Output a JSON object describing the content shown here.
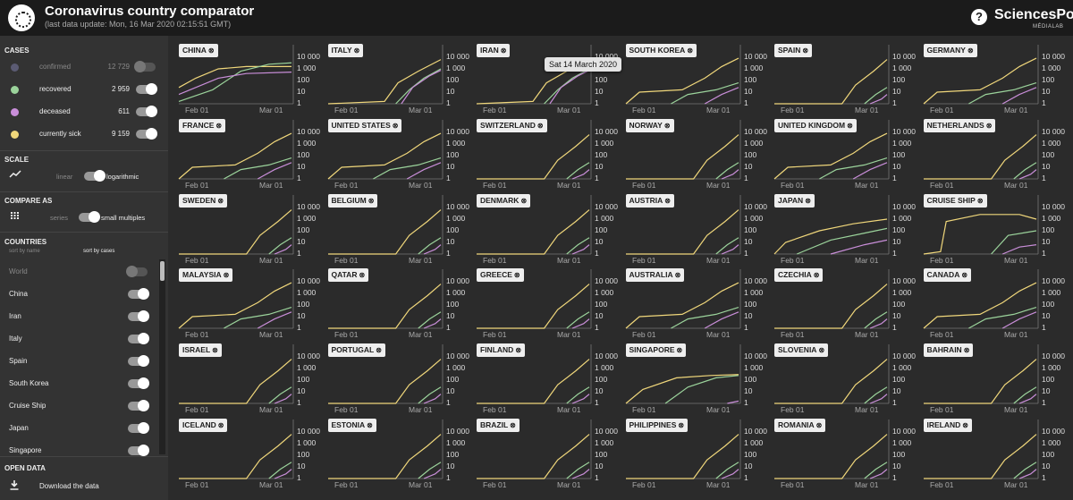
{
  "header": {
    "title": "Coronavirus country comparator",
    "last_update": "(last data update: Mon, 16 Mar 2020 02:15:51 GMT)",
    "help": "?",
    "brand": "SciencesPo",
    "brand_sub": "MÉDIALAB"
  },
  "colors": {
    "confirmed": "#5b5b73",
    "recovered": "#9bd39b",
    "deceased": "#c98ed9",
    "sick": "#f0d77b"
  },
  "sidebar": {
    "cases_title": "CASES",
    "cases": [
      {
        "key": "confirmed",
        "label": "confirmed",
        "value": "12 729",
        "on": false
      },
      {
        "key": "recovered",
        "label": "recovered",
        "value": "2 959",
        "on": true
      },
      {
        "key": "deceased",
        "label": "deceased",
        "value": "611",
        "on": true
      },
      {
        "key": "sick",
        "label": "currently sick",
        "value": "9 159",
        "on": true
      }
    ],
    "scale_title": "SCALE",
    "scale_off": "linear",
    "scale_on": "logarithmic",
    "scale_icon": "trend-line-icon",
    "compare_title": "COMPARE AS",
    "compare_off": "series",
    "compare_on": "small multiples",
    "compare_icon": "grid-icon",
    "countries_title": "COUNTRIES",
    "sort_name": "sort by name",
    "sort_cases": "sort by cases",
    "countries": [
      {
        "label": "World",
        "on": false
      },
      {
        "label": "China",
        "on": true
      },
      {
        "label": "Iran",
        "on": true
      },
      {
        "label": "Italy",
        "on": true
      },
      {
        "label": "Spain",
        "on": true
      },
      {
        "label": "South Korea",
        "on": true
      },
      {
        "label": "Cruise Ship",
        "on": true
      },
      {
        "label": "Japan",
        "on": true
      },
      {
        "label": "Singapore",
        "on": true
      }
    ],
    "open_data_title": "OPEN DATA",
    "download_label": "Download the data",
    "download_icon": "download-icon"
  },
  "tooltip": "Sat 14 March 2020",
  "panels": [
    {
      "name": "CHINA",
      "profile": "china"
    },
    {
      "name": "ITALY",
      "profile": "steep"
    },
    {
      "name": "IRAN",
      "profile": "steep"
    },
    {
      "name": "SOUTH KOREA",
      "profile": "early"
    },
    {
      "name": "SPAIN",
      "profile": "late"
    },
    {
      "name": "GERMANY",
      "profile": "early"
    },
    {
      "name": "FRANCE",
      "profile": "early"
    },
    {
      "name": "UNITED STATES",
      "profile": "early"
    },
    {
      "name": "SWITZERLAND",
      "profile": "late"
    },
    {
      "name": "NORWAY",
      "profile": "late"
    },
    {
      "name": "UNITED KINGDOM",
      "profile": "early"
    },
    {
      "name": "NETHERLANDS",
      "profile": "late"
    },
    {
      "name": "SWEDEN",
      "profile": "late"
    },
    {
      "name": "BELGIUM",
      "profile": "late"
    },
    {
      "name": "DENMARK",
      "profile": "late"
    },
    {
      "name": "AUSTRIA",
      "profile": "late"
    },
    {
      "name": "JAPAN",
      "profile": "japan"
    },
    {
      "name": "CRUISE SHIP",
      "profile": "ship"
    },
    {
      "name": "MALAYSIA",
      "profile": "early"
    },
    {
      "name": "QATAR",
      "profile": "late"
    },
    {
      "name": "GREECE",
      "profile": "late"
    },
    {
      "name": "AUSTRALIA",
      "profile": "early"
    },
    {
      "name": "CZECHIA",
      "profile": "late"
    },
    {
      "name": "CANADA",
      "profile": "early"
    },
    {
      "name": "ISRAEL",
      "profile": "late"
    },
    {
      "name": "PORTUGAL",
      "profile": "late"
    },
    {
      "name": "FINLAND",
      "profile": "late"
    },
    {
      "name": "SINGAPORE",
      "profile": "singapore"
    },
    {
      "name": "SLOVENIA",
      "profile": "late"
    },
    {
      "name": "BAHRAIN",
      "profile": "late"
    },
    {
      "name": "ICELAND",
      "profile": "late"
    },
    {
      "name": "ESTONIA",
      "profile": "late"
    },
    {
      "name": "BRAZIL",
      "profile": "late"
    },
    {
      "name": "PHILIPPINES",
      "profile": "late"
    },
    {
      "name": "ROMANIA",
      "profile": "late"
    },
    {
      "name": "IRELAND",
      "profile": "late"
    }
  ],
  "axis": {
    "x_ticks": [
      "Feb 01",
      "Mar 01"
    ],
    "y_ticks": [
      "10 000",
      "1 000",
      "100",
      "10",
      "1"
    ]
  }
}
